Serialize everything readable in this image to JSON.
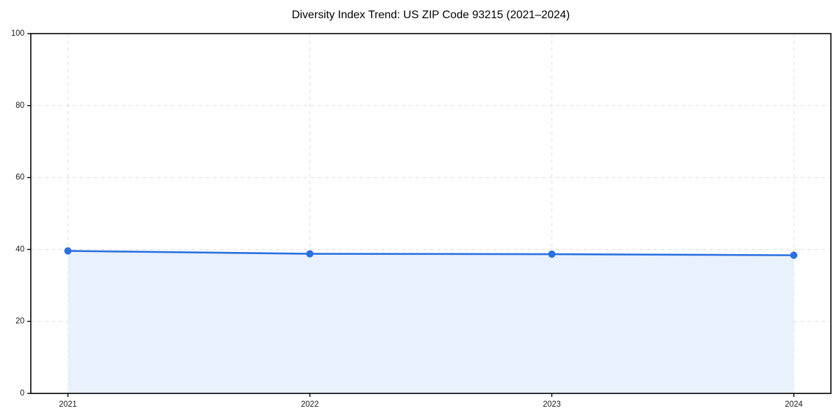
{
  "figure": {
    "background": "#ffffff"
  },
  "chart_data": {
    "type": "area",
    "title": "Diversity Index Trend: US ZIP Code 93215 (2021–2024)",
    "categories": [
      "2021",
      "2022",
      "2023",
      "2024"
    ],
    "series": [
      {
        "name": "Diversity Index",
        "values": [
          39.6,
          38.8,
          38.7,
          38.4
        ]
      }
    ],
    "xlabel": "",
    "ylabel": "",
    "ylim": [
      0,
      100
    ],
    "yticks": [
      0,
      20,
      40,
      60,
      80,
      100
    ],
    "grid": true,
    "grid_style": "dashed",
    "legend": "none",
    "marker": "circle",
    "colors": {
      "line": "#2a70e0",
      "marker": "#2a70e0",
      "fill": "#e9f1fc",
      "grid": "#dcdcdc",
      "spine": "#000000",
      "text": "#000000",
      "background": "#ffffff"
    }
  }
}
